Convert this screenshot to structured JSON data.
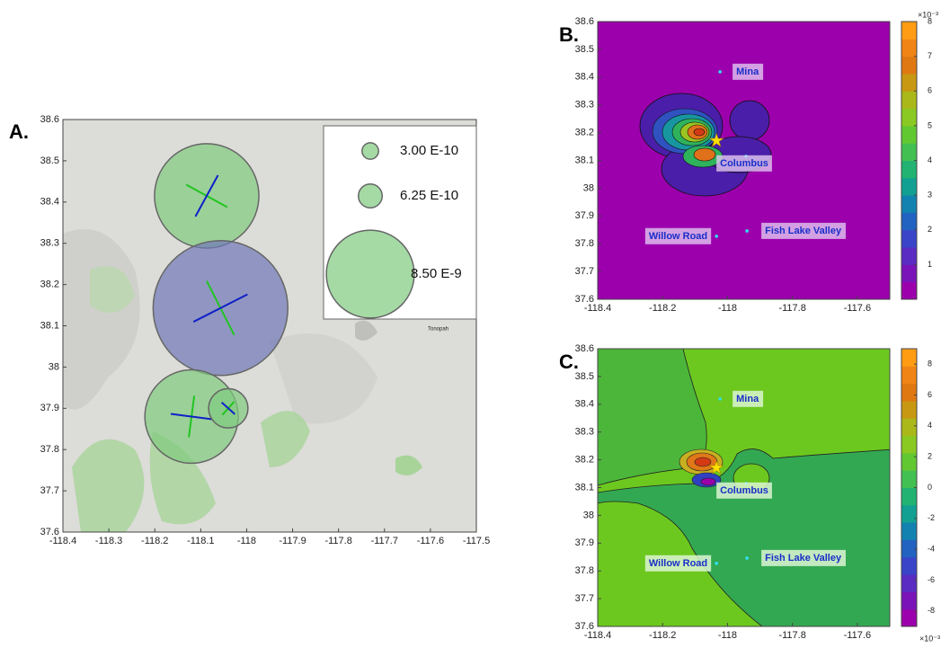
{
  "chart_data": [
    {
      "type": "bubble",
      "panel_label": "A.",
      "x": [
        -118.087,
        -118.057,
        -118.12,
        -118.04
      ],
      "y": [
        38.415,
        38.143,
        37.88,
        37.9
      ],
      "sizes": [
        1.2e-08,
        2e-08,
        9.6e-09,
        1.7e-09
      ],
      "colors": [
        "#7fcb7f",
        "#6f78b8",
        "#7fcb7f",
        "#7fcb7f"
      ],
      "legend": [
        {
          "value": 3e-10,
          "label": "3.00 E-10"
        },
        {
          "value": 6.25e-10,
          "label": "6.25 E-10"
        },
        {
          "value": 8.5e-09,
          "label": "8.50 E-9"
        }
      ],
      "annotations": [
        "Tonopah"
      ],
      "xlim": [
        -118.4,
        -117.5
      ],
      "ylim": [
        37.6,
        38.6
      ],
      "xticks": [
        -118.4,
        -118.3,
        -118.2,
        -118.1,
        -118,
        -117.9,
        -117.8,
        -117.7,
        -117.6,
        -117.5
      ],
      "yticks": [
        37.6,
        37.7,
        37.8,
        37.9,
        38,
        38.1,
        38.2,
        38.3,
        38.4,
        38.5,
        38.6
      ]
    },
    {
      "type": "contour",
      "panel_label": "B.",
      "stations": [
        {
          "name": "Mina",
          "x": -118.023,
          "y": 38.419
        },
        {
          "name": "Columbus",
          "x": -117.943,
          "y": 38.115
        },
        {
          "name": "Willow Road",
          "x": -118.034,
          "y": 37.827
        },
        {
          "name": "Fish Lake Valley",
          "x": -117.94,
          "y": 37.846
        }
      ],
      "epicenter": {
        "x": -118.034,
        "y": 38.171
      },
      "xlim": [
        -118.4,
        -117.5
      ],
      "ylim": [
        37.6,
        38.6
      ],
      "xticks": [
        -118.4,
        -118.2,
        -118,
        -117.8,
        -117.6
      ],
      "yticks": [
        37.6,
        37.7,
        37.8,
        37.9,
        38,
        38.1,
        38.2,
        38.3,
        38.4,
        38.5,
        38.6
      ],
      "clim": [
        0,
        8
      ],
      "cticks": [
        1,
        2,
        3,
        4,
        5,
        6,
        7,
        8
      ],
      "colorbar_label": "×10⁻³",
      "colormap": [
        "#9c00ad",
        "#7a14b8",
        "#5a2cc2",
        "#3a44c8",
        "#2262c0",
        "#1282b0",
        "#12a092",
        "#22b272",
        "#42c052",
        "#62c832",
        "#8ac822",
        "#aab81a",
        "#c89812",
        "#e07812",
        "#f08414",
        "#ff9c14"
      ]
    },
    {
      "type": "contour",
      "panel_label": "C.",
      "stations": [
        {
          "name": "Mina",
          "x": -118.023,
          "y": 38.419
        },
        {
          "name": "Columbus",
          "x": -117.943,
          "y": 38.115
        },
        {
          "name": "Willow Road",
          "x": -118.034,
          "y": 37.827
        },
        {
          "name": "Fish Lake Valley",
          "x": -117.94,
          "y": 37.846
        }
      ],
      "epicenter": {
        "x": -118.034,
        "y": 38.171
      },
      "xlim": [
        -118.4,
        -117.5
      ],
      "ylim": [
        37.6,
        38.6
      ],
      "xticks": [
        -118.4,
        -118.2,
        -118,
        -117.8,
        -117.6
      ],
      "yticks": [
        37.6,
        37.7,
        37.8,
        37.9,
        38,
        38.1,
        38.2,
        38.3,
        38.4,
        38.5,
        38.6
      ],
      "clim": [
        -9,
        9
      ],
      "cticks": [
        -8,
        -6,
        -4,
        -2,
        0,
        2,
        4,
        6,
        8
      ],
      "colorbar_label": "×10⁻³",
      "colormap": [
        "#9c00ad",
        "#7a14b8",
        "#5a2cc2",
        "#3a44c8",
        "#2262c0",
        "#1282b0",
        "#12a092",
        "#22b272",
        "#42c052",
        "#62c832",
        "#8ac822",
        "#aab81a",
        "#c89812",
        "#e07812",
        "#f08414",
        "#ff9c14"
      ]
    }
  ]
}
